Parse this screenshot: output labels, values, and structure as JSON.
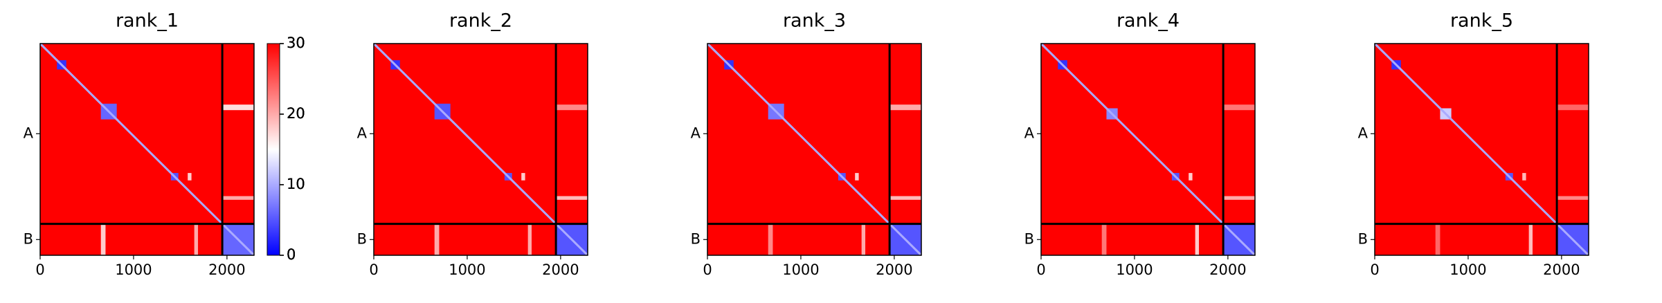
{
  "chart_data": [
    {
      "type": "heatmap",
      "title": "rank_1",
      "xlim": [
        0,
        2290
      ],
      "xticks": [
        0,
        1000,
        2000
      ],
      "ylim": [
        2290,
        0
      ],
      "yticks": [
        {
          "value": 975,
          "label": "A"
        },
        {
          "value": 2120,
          "label": "B"
        }
      ],
      "chain_breaks": [
        1950
      ],
      "background": 30,
      "diagonals": [
        {
          "range": [
            0,
            1950
          ],
          "value": 10
        },
        {
          "range": [
            1950,
            2290
          ],
          "value": 10
        }
      ],
      "blocks": [
        {
          "x": [
            180,
            280
          ],
          "y": [
            180,
            280
          ],
          "value": 3
        },
        {
          "x": [
            650,
            820
          ],
          "y": [
            650,
            820
          ],
          "value": 6
        },
        {
          "x": [
            1400,
            1480
          ],
          "y": [
            1400,
            1480
          ],
          "value": 5
        },
        {
          "x": [
            1950,
            2290
          ],
          "y": [
            1950,
            2290
          ],
          "value": 6
        },
        {
          "x": [
            1950,
            2290
          ],
          "y": [
            660,
            720
          ],
          "value": 17
        },
        {
          "x": [
            1950,
            2290
          ],
          "y": [
            1650,
            1690
          ],
          "value": 20
        },
        {
          "x": [
            650,
            700
          ],
          "y": [
            1950,
            2290
          ],
          "value": 18
        },
        {
          "x": [
            1650,
            1690
          ],
          "y": [
            1950,
            2290
          ],
          "value": 20
        },
        {
          "x": [
            1580,
            1620
          ],
          "y": [
            1400,
            1480
          ],
          "value": 18
        }
      ],
      "colorbar": {
        "lim": [
          0,
          30
        ],
        "ticks": [
          0,
          10,
          20,
          30
        ]
      }
    },
    {
      "type": "heatmap",
      "title": "rank_2",
      "xlim": [
        0,
        2290
      ],
      "xticks": [
        0,
        1000,
        2000
      ],
      "ylim": [
        2290,
        0
      ],
      "yticks": [
        {
          "value": 975,
          "label": "A"
        },
        {
          "value": 2120,
          "label": "B"
        }
      ],
      "chain_breaks": [
        1950
      ],
      "background": 30,
      "diagonals": [
        {
          "range": [
            0,
            1950
          ],
          "value": 10
        },
        {
          "range": [
            1950,
            2290
          ],
          "value": 10
        }
      ],
      "blocks": [
        {
          "x": [
            180,
            280
          ],
          "y": [
            180,
            280
          ],
          "value": 3
        },
        {
          "x": [
            650,
            820
          ],
          "y": [
            650,
            820
          ],
          "value": 5
        },
        {
          "x": [
            1400,
            1480
          ],
          "y": [
            1400,
            1480
          ],
          "value": 5
        },
        {
          "x": [
            1950,
            2290
          ],
          "y": [
            1950,
            2290
          ],
          "value": 5
        },
        {
          "x": [
            1950,
            2290
          ],
          "y": [
            660,
            720
          ],
          "value": 22
        },
        {
          "x": [
            1950,
            2290
          ],
          "y": [
            1650,
            1690
          ],
          "value": 19
        },
        {
          "x": [
            650,
            700
          ],
          "y": [
            1950,
            2290
          ],
          "value": 20
        },
        {
          "x": [
            1650,
            1690
          ],
          "y": [
            1950,
            2290
          ],
          "value": 20
        },
        {
          "x": [
            1580,
            1620
          ],
          "y": [
            1400,
            1480
          ],
          "value": 18
        }
      ],
      "colorbar": {
        "lim": [
          0,
          30
        ],
        "ticks": [
          0,
          10,
          20,
          30
        ]
      }
    },
    {
      "type": "heatmap",
      "title": "rank_3",
      "xlim": [
        0,
        2290
      ],
      "xticks": [
        0,
        1000,
        2000
      ],
      "ylim": [
        2290,
        0
      ],
      "yticks": [
        {
          "value": 975,
          "label": "A"
        },
        {
          "value": 2120,
          "label": "B"
        }
      ],
      "chain_breaks": [
        1950
      ],
      "background": 30,
      "diagonals": [
        {
          "range": [
            0,
            1950
          ],
          "value": 10
        },
        {
          "range": [
            1950,
            2290
          ],
          "value": 10
        }
      ],
      "blocks": [
        {
          "x": [
            180,
            280
          ],
          "y": [
            180,
            280
          ],
          "value": 3
        },
        {
          "x": [
            650,
            820
          ],
          "y": [
            650,
            820
          ],
          "value": 7
        },
        {
          "x": [
            1400,
            1480
          ],
          "y": [
            1400,
            1480
          ],
          "value": 5
        },
        {
          "x": [
            1950,
            2290
          ],
          "y": [
            1950,
            2290
          ],
          "value": 5
        },
        {
          "x": [
            1950,
            2290
          ],
          "y": [
            660,
            720
          ],
          "value": 20
        },
        {
          "x": [
            1950,
            2290
          ],
          "y": [
            1650,
            1690
          ],
          "value": 19
        },
        {
          "x": [
            650,
            700
          ],
          "y": [
            1950,
            2290
          ],
          "value": 22
        },
        {
          "x": [
            1650,
            1690
          ],
          "y": [
            1950,
            2290
          ],
          "value": 20
        },
        {
          "x": [
            1580,
            1620
          ],
          "y": [
            1400,
            1480
          ],
          "value": 18
        }
      ],
      "colorbar": {
        "lim": [
          0,
          30
        ],
        "ticks": [
          0,
          10,
          20,
          30
        ]
      }
    },
    {
      "type": "heatmap",
      "title": "rank_4",
      "xlim": [
        0,
        2290
      ],
      "xticks": [
        0,
        1000,
        2000
      ],
      "ylim": [
        2290,
        0
      ],
      "yticks": [
        {
          "value": 975,
          "label": "A"
        },
        {
          "value": 2120,
          "label": "B"
        }
      ],
      "chain_breaks": [
        1950
      ],
      "background": 30,
      "diagonals": [
        {
          "range": [
            0,
            1950
          ],
          "value": 10
        },
        {
          "range": [
            1950,
            2290
          ],
          "value": 10
        }
      ],
      "blocks": [
        {
          "x": [
            180,
            280
          ],
          "y": [
            180,
            280
          ],
          "value": 3
        },
        {
          "x": [
            700,
            820
          ],
          "y": [
            700,
            820
          ],
          "value": 8
        },
        {
          "x": [
            1400,
            1480
          ],
          "y": [
            1400,
            1480
          ],
          "value": 5
        },
        {
          "x": [
            1950,
            2290
          ],
          "y": [
            1950,
            2290
          ],
          "value": 5
        },
        {
          "x": [
            1950,
            2290
          ],
          "y": [
            660,
            720
          ],
          "value": 23
        },
        {
          "x": [
            1950,
            2290
          ],
          "y": [
            1650,
            1690
          ],
          "value": 20
        },
        {
          "x": [
            650,
            700
          ],
          "y": [
            1950,
            2290
          ],
          "value": 23
        },
        {
          "x": [
            1650,
            1690
          ],
          "y": [
            1950,
            2290
          ],
          "value": 18
        },
        {
          "x": [
            1580,
            1620
          ],
          "y": [
            1400,
            1480
          ],
          "value": 18
        }
      ],
      "colorbar": {
        "lim": [
          0,
          30
        ],
        "ticks": [
          0,
          10,
          20,
          30
        ]
      }
    },
    {
      "type": "heatmap",
      "title": "rank_5",
      "xlim": [
        0,
        2290
      ],
      "xticks": [
        0,
        1000,
        2000
      ],
      "ylim": [
        2290,
        0
      ],
      "yticks": [
        {
          "value": 975,
          "label": "A"
        },
        {
          "value": 2120,
          "label": "B"
        }
      ],
      "chain_breaks": [
        1950
      ],
      "background": 30,
      "diagonals": [
        {
          "range": [
            0,
            1950
          ],
          "value": 10
        },
        {
          "range": [
            1950,
            2290
          ],
          "value": 10
        }
      ],
      "blocks": [
        {
          "x": [
            180,
            280
          ],
          "y": [
            180,
            280
          ],
          "value": 3
        },
        {
          "x": [
            700,
            820
          ],
          "y": [
            700,
            820
          ],
          "value": 12
        },
        {
          "x": [
            1400,
            1480
          ],
          "y": [
            1400,
            1480
          ],
          "value": 5
        },
        {
          "x": [
            1950,
            2290
          ],
          "y": [
            1950,
            2290
          ],
          "value": 5
        },
        {
          "x": [
            1950,
            2290
          ],
          "y": [
            660,
            720
          ],
          "value": 24
        },
        {
          "x": [
            1950,
            2290
          ],
          "y": [
            1650,
            1690
          ],
          "value": 22
        },
        {
          "x": [
            650,
            700
          ],
          "y": [
            1950,
            2290
          ],
          "value": 24
        },
        {
          "x": [
            1650,
            1690
          ],
          "y": [
            1950,
            2290
          ],
          "value": 19
        },
        {
          "x": [
            1580,
            1620
          ],
          "y": [
            1400,
            1480
          ],
          "value": 19
        }
      ],
      "colorbar": {
        "lim": [
          0,
          30
        ],
        "ticks": [
          0,
          10,
          20,
          30
        ]
      }
    }
  ]
}
